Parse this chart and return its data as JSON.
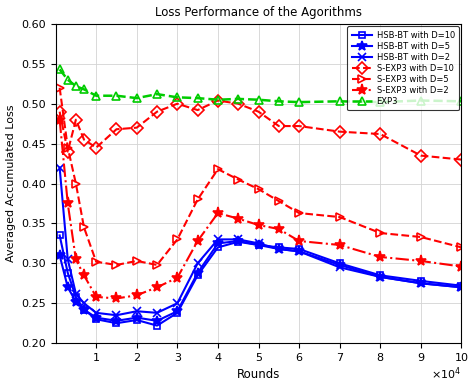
{
  "title": "Loss Performance of the Agorithms",
  "xlabel": "Rounds",
  "ylabel": "Averaged Accumulated Loss",
  "xlim": [
    0,
    100000
  ],
  "ylim": [
    0.2,
    0.6
  ],
  "background": "#ffffff",
  "grid": true,
  "series": [
    {
      "label": "HSB-BT with D=10",
      "color": "#0000ff",
      "linestyle": "-",
      "marker": "s",
      "markersize": 5,
      "linewidth": 1.5,
      "markerfacecolor": "none",
      "x": [
        1000,
        3000,
        5000,
        7000,
        10000,
        15000,
        20000,
        25000,
        30000,
        35000,
        40000,
        45000,
        50000,
        55000,
        60000,
        70000,
        80000,
        90000,
        100000
      ],
      "y": [
        0.335,
        0.288,
        0.258,
        0.242,
        0.23,
        0.225,
        0.229,
        0.222,
        0.238,
        0.285,
        0.32,
        0.327,
        0.323,
        0.32,
        0.318,
        0.3,
        0.285,
        0.278,
        0.272
      ]
    },
    {
      "label": "HSB-BT with D=5",
      "color": "#0000ff",
      "linestyle": "-",
      "marker": "*",
      "markersize": 7,
      "linewidth": 1.5,
      "markerfacecolor": "color",
      "x": [
        1000,
        3000,
        5000,
        7000,
        10000,
        15000,
        20000,
        25000,
        30000,
        35000,
        40000,
        45000,
        50000,
        55000,
        60000,
        70000,
        80000,
        90000,
        100000
      ],
      "y": [
        0.31,
        0.27,
        0.252,
        0.242,
        0.232,
        0.228,
        0.232,
        0.228,
        0.24,
        0.288,
        0.325,
        0.328,
        0.323,
        0.318,
        0.315,
        0.298,
        0.283,
        0.275,
        0.27
      ]
    },
    {
      "label": "HSB-BT with D=2",
      "color": "#0000ff",
      "linestyle": "-",
      "marker": "x",
      "markersize": 6,
      "linewidth": 1.5,
      "markerfacecolor": "color",
      "x": [
        1000,
        3000,
        5000,
        7000,
        10000,
        15000,
        20000,
        25000,
        30000,
        35000,
        40000,
        45000,
        50000,
        55000,
        60000,
        70000,
        80000,
        90000,
        100000
      ],
      "y": [
        0.42,
        0.305,
        0.262,
        0.25,
        0.238,
        0.235,
        0.24,
        0.238,
        0.25,
        0.3,
        0.33,
        0.33,
        0.325,
        0.318,
        0.315,
        0.295,
        0.283,
        0.275,
        0.27
      ]
    },
    {
      "label": "S-EXP3 with D=10",
      "color": "#ff0000",
      "linestyle": "--",
      "marker": "D",
      "markersize": 6,
      "linewidth": 1.5,
      "markerfacecolor": "none",
      "x": [
        1000,
        3000,
        5000,
        7000,
        10000,
        15000,
        20000,
        25000,
        30000,
        35000,
        40000,
        45000,
        50000,
        55000,
        60000,
        70000,
        80000,
        90000,
        100000
      ],
      "y": [
        0.49,
        0.44,
        0.48,
        0.455,
        0.445,
        0.468,
        0.47,
        0.49,
        0.5,
        0.492,
        0.504,
        0.5,
        0.49,
        0.472,
        0.472,
        0.465,
        0.462,
        0.435,
        0.43
      ]
    },
    {
      "label": "S-EXP3 with D=5",
      "color": "#ff0000",
      "linestyle": "--",
      "marker": ">",
      "markersize": 6,
      "linewidth": 1.5,
      "markerfacecolor": "none",
      "x": [
        1000,
        3000,
        5000,
        7000,
        10000,
        15000,
        20000,
        25000,
        30000,
        35000,
        40000,
        45000,
        50000,
        55000,
        60000,
        70000,
        80000,
        90000,
        100000
      ],
      "y": [
        0.52,
        0.445,
        0.4,
        0.345,
        0.302,
        0.298,
        0.303,
        0.298,
        0.33,
        0.38,
        0.418,
        0.405,
        0.393,
        0.378,
        0.363,
        0.358,
        0.338,
        0.333,
        0.32
      ]
    },
    {
      "label": "S-EXP3 with D=2",
      "color": "#ff0000",
      "linestyle": "-.",
      "marker": "*",
      "markersize": 8,
      "linewidth": 1.5,
      "markerfacecolor": "color",
      "x": [
        1000,
        3000,
        5000,
        7000,
        10000,
        15000,
        20000,
        25000,
        30000,
        35000,
        40000,
        45000,
        50000,
        55000,
        60000,
        70000,
        80000,
        90000,
        100000
      ],
      "y": [
        0.48,
        0.375,
        0.305,
        0.285,
        0.258,
        0.256,
        0.26,
        0.27,
        0.282,
        0.328,
        0.363,
        0.356,
        0.348,
        0.343,
        0.328,
        0.323,
        0.308,
        0.303,
        0.296
      ]
    },
    {
      "label": "EXP3",
      "color": "#00cc00",
      "linestyle": "--",
      "marker": "^",
      "markersize": 6,
      "linewidth": 1.8,
      "markerfacecolor": "none",
      "x": [
        1000,
        3000,
        5000,
        7000,
        10000,
        15000,
        20000,
        25000,
        30000,
        35000,
        40000,
        45000,
        50000,
        55000,
        60000,
        70000,
        80000,
        90000,
        100000
      ],
      "y": [
        0.543,
        0.53,
        0.522,
        0.518,
        0.51,
        0.51,
        0.507,
        0.512,
        0.508,
        0.507,
        0.505,
        0.506,
        0.505,
        0.503,
        0.502,
        0.503,
        0.502,
        0.504,
        0.503
      ]
    }
  ]
}
